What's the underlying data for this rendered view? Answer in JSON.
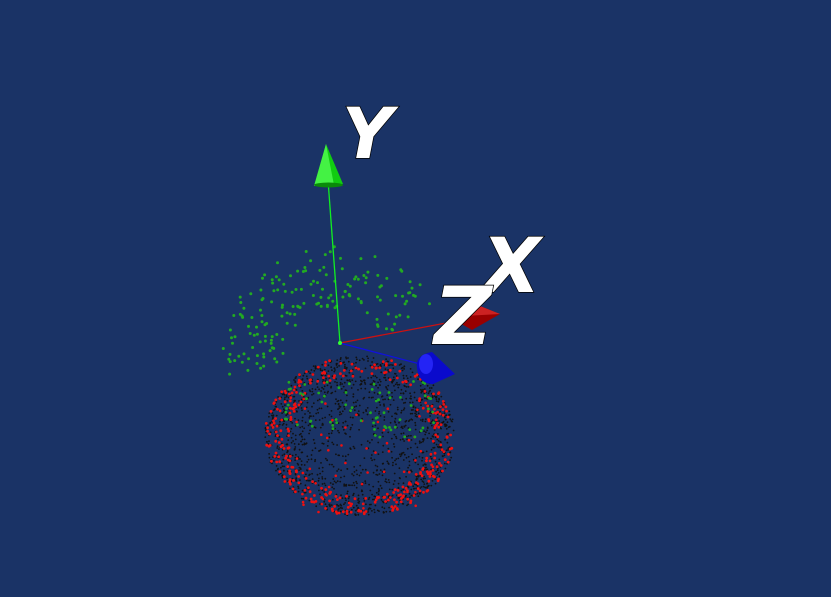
{
  "scene": {
    "background": "#1a3366",
    "axes": {
      "x": {
        "label": "X",
        "color": "#cc1111"
      },
      "y": {
        "label": "Y",
        "color": "#11ee22"
      },
      "z": {
        "label": "Z",
        "color": "#1111dd"
      }
    },
    "point_colors": {
      "surface": "#111111",
      "green": "#22aa22",
      "red": "#ee1111"
    }
  }
}
